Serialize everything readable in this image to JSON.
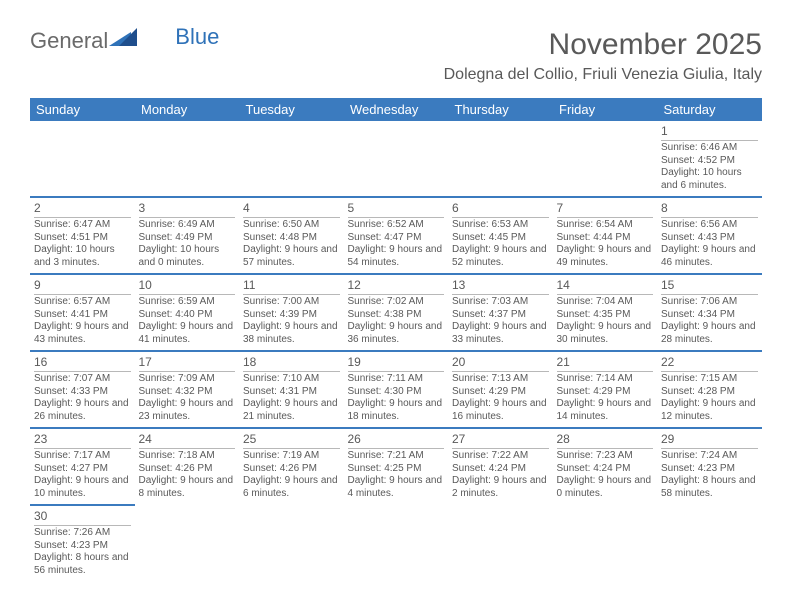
{
  "brand": {
    "general": "General",
    "blue": "Blue"
  },
  "title": "November 2025",
  "location": "Dolegna del Collio, Friuli Venezia Giulia, Italy",
  "colors": {
    "header_bg": "#3b7bbf",
    "header_text": "#ffffff",
    "text": "#595959",
    "rule": "#3b7bbf",
    "day_divider": "#b8b8b8",
    "logo_gray": "#6a6a6a",
    "logo_blue": "#2f72b8",
    "page_bg": "#ffffff"
  },
  "typography": {
    "title_fontsize": 30,
    "location_fontsize": 16,
    "weekday_fontsize": 13,
    "daynum_fontsize": 12,
    "body_fontsize": 10
  },
  "weekdays": [
    "Sunday",
    "Monday",
    "Tuesday",
    "Wednesday",
    "Thursday",
    "Friday",
    "Saturday"
  ],
  "grid": [
    [
      null,
      null,
      null,
      null,
      null,
      null,
      {
        "n": "1",
        "sr": "Sunrise: 6:46 AM",
        "ss": "Sunset: 4:52 PM",
        "dl": "Daylight: 10 hours and 6 minutes."
      }
    ],
    [
      {
        "n": "2",
        "sr": "Sunrise: 6:47 AM",
        "ss": "Sunset: 4:51 PM",
        "dl": "Daylight: 10 hours and 3 minutes."
      },
      {
        "n": "3",
        "sr": "Sunrise: 6:49 AM",
        "ss": "Sunset: 4:49 PM",
        "dl": "Daylight: 10 hours and 0 minutes."
      },
      {
        "n": "4",
        "sr": "Sunrise: 6:50 AM",
        "ss": "Sunset: 4:48 PM",
        "dl": "Daylight: 9 hours and 57 minutes."
      },
      {
        "n": "5",
        "sr": "Sunrise: 6:52 AM",
        "ss": "Sunset: 4:47 PM",
        "dl": "Daylight: 9 hours and 54 minutes."
      },
      {
        "n": "6",
        "sr": "Sunrise: 6:53 AM",
        "ss": "Sunset: 4:45 PM",
        "dl": "Daylight: 9 hours and 52 minutes."
      },
      {
        "n": "7",
        "sr": "Sunrise: 6:54 AM",
        "ss": "Sunset: 4:44 PM",
        "dl": "Daylight: 9 hours and 49 minutes."
      },
      {
        "n": "8",
        "sr": "Sunrise: 6:56 AM",
        "ss": "Sunset: 4:43 PM",
        "dl": "Daylight: 9 hours and 46 minutes."
      }
    ],
    [
      {
        "n": "9",
        "sr": "Sunrise: 6:57 AM",
        "ss": "Sunset: 4:41 PM",
        "dl": "Daylight: 9 hours and 43 minutes."
      },
      {
        "n": "10",
        "sr": "Sunrise: 6:59 AM",
        "ss": "Sunset: 4:40 PM",
        "dl": "Daylight: 9 hours and 41 minutes."
      },
      {
        "n": "11",
        "sr": "Sunrise: 7:00 AM",
        "ss": "Sunset: 4:39 PM",
        "dl": "Daylight: 9 hours and 38 minutes."
      },
      {
        "n": "12",
        "sr": "Sunrise: 7:02 AM",
        "ss": "Sunset: 4:38 PM",
        "dl": "Daylight: 9 hours and 36 minutes."
      },
      {
        "n": "13",
        "sr": "Sunrise: 7:03 AM",
        "ss": "Sunset: 4:37 PM",
        "dl": "Daylight: 9 hours and 33 minutes."
      },
      {
        "n": "14",
        "sr": "Sunrise: 7:04 AM",
        "ss": "Sunset: 4:35 PM",
        "dl": "Daylight: 9 hours and 30 minutes."
      },
      {
        "n": "15",
        "sr": "Sunrise: 7:06 AM",
        "ss": "Sunset: 4:34 PM",
        "dl": "Daylight: 9 hours and 28 minutes."
      }
    ],
    [
      {
        "n": "16",
        "sr": "Sunrise: 7:07 AM",
        "ss": "Sunset: 4:33 PM",
        "dl": "Daylight: 9 hours and 26 minutes."
      },
      {
        "n": "17",
        "sr": "Sunrise: 7:09 AM",
        "ss": "Sunset: 4:32 PM",
        "dl": "Daylight: 9 hours and 23 minutes."
      },
      {
        "n": "18",
        "sr": "Sunrise: 7:10 AM",
        "ss": "Sunset: 4:31 PM",
        "dl": "Daylight: 9 hours and 21 minutes."
      },
      {
        "n": "19",
        "sr": "Sunrise: 7:11 AM",
        "ss": "Sunset: 4:30 PM",
        "dl": "Daylight: 9 hours and 18 minutes."
      },
      {
        "n": "20",
        "sr": "Sunrise: 7:13 AM",
        "ss": "Sunset: 4:29 PM",
        "dl": "Daylight: 9 hours and 16 minutes."
      },
      {
        "n": "21",
        "sr": "Sunrise: 7:14 AM",
        "ss": "Sunset: 4:29 PM",
        "dl": "Daylight: 9 hours and 14 minutes."
      },
      {
        "n": "22",
        "sr": "Sunrise: 7:15 AM",
        "ss": "Sunset: 4:28 PM",
        "dl": "Daylight: 9 hours and 12 minutes."
      }
    ],
    [
      {
        "n": "23",
        "sr": "Sunrise: 7:17 AM",
        "ss": "Sunset: 4:27 PM",
        "dl": "Daylight: 9 hours and 10 minutes."
      },
      {
        "n": "24",
        "sr": "Sunrise: 7:18 AM",
        "ss": "Sunset: 4:26 PM",
        "dl": "Daylight: 9 hours and 8 minutes."
      },
      {
        "n": "25",
        "sr": "Sunrise: 7:19 AM",
        "ss": "Sunset: 4:26 PM",
        "dl": "Daylight: 9 hours and 6 minutes."
      },
      {
        "n": "26",
        "sr": "Sunrise: 7:21 AM",
        "ss": "Sunset: 4:25 PM",
        "dl": "Daylight: 9 hours and 4 minutes."
      },
      {
        "n": "27",
        "sr": "Sunrise: 7:22 AM",
        "ss": "Sunset: 4:24 PM",
        "dl": "Daylight: 9 hours and 2 minutes."
      },
      {
        "n": "28",
        "sr": "Sunrise: 7:23 AM",
        "ss": "Sunset: 4:24 PM",
        "dl": "Daylight: 9 hours and 0 minutes."
      },
      {
        "n": "29",
        "sr": "Sunrise: 7:24 AM",
        "ss": "Sunset: 4:23 PM",
        "dl": "Daylight: 8 hours and 58 minutes."
      }
    ],
    [
      {
        "n": "30",
        "sr": "Sunrise: 7:26 AM",
        "ss": "Sunset: 4:23 PM",
        "dl": "Daylight: 8 hours and 56 minutes."
      },
      null,
      null,
      null,
      null,
      null,
      null
    ]
  ]
}
